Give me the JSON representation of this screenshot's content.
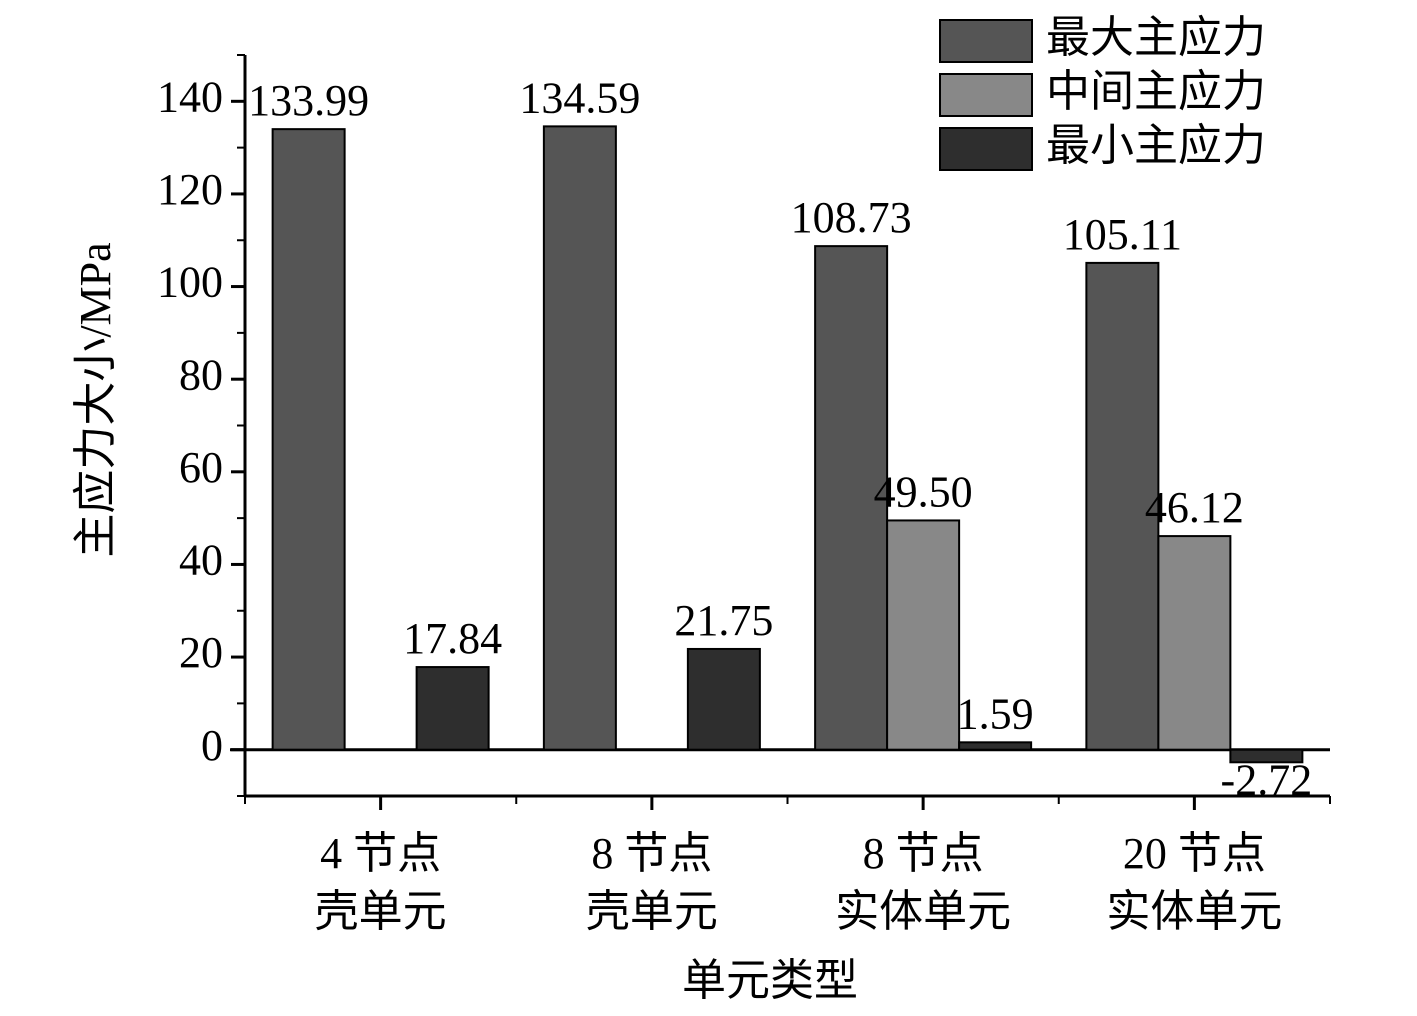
{
  "chart_data": {
    "type": "bar",
    "x_label": "单元类型",
    "y_label": "主应力大小/MPa",
    "categories": [
      [
        "4 节点",
        "壳单元"
      ],
      [
        "8 节点",
        "壳单元"
      ],
      [
        "8 节点",
        "实体单元"
      ],
      [
        "20 节点",
        "实体单元"
      ]
    ],
    "series": [
      {
        "name": "最大主应力",
        "color": "#555555",
        "values": [
          133.99,
          134.59,
          108.73,
          105.11
        ]
      },
      {
        "name": "中间主应力",
        "color": "#888888",
        "values": [
          null,
          null,
          49.5,
          46.12
        ],
        "value_labels": [
          null,
          null,
          "49.50",
          "46.12"
        ]
      },
      {
        "name": "最小主应力",
        "color": "#2e2e2e",
        "values": [
          17.84,
          21.75,
          1.59,
          -2.72
        ]
      }
    ],
    "ylim": [
      -10,
      150
    ],
    "yticks": [
      0,
      20,
      40,
      60,
      80,
      100,
      120,
      140
    ],
    "legend": "top-right"
  }
}
